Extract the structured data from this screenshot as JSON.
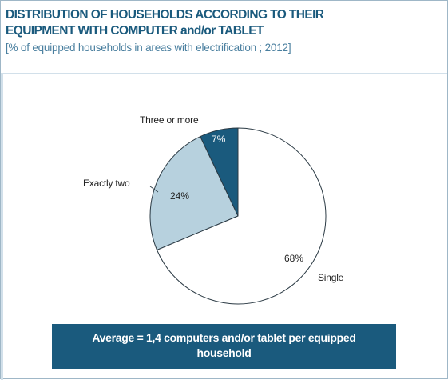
{
  "title_line1": "DISTRIBUTION OF HOUSEHOLDS ACCORDING TO THEIR",
  "title_line2": "EQUIPMENT WITH COMPUTER and/or TABLET",
  "subtitle": "[% of equipped households in areas with electrification ; 2012]",
  "chart_data": {
    "type": "pie",
    "slices": [
      {
        "label": "Three or more",
        "value": 7,
        "value_label": "7%",
        "color": "#1a5a7d",
        "text_color": "#ffffff"
      },
      {
        "label": "Exactly two",
        "value": 24,
        "value_label": "24%",
        "color": "#b7d1de",
        "text_color": "#222222"
      },
      {
        "label": "Single",
        "value": 68,
        "value_label": "68%",
        "color": "#ffffff",
        "text_color": "#222222"
      }
    ],
    "start": "12 o'clock",
    "direction": "counter-clockwise from Three or more; Single fills the right side clockwise"
  },
  "average_box": "Average = 1,4 computers and/or tablet per equipped household"
}
